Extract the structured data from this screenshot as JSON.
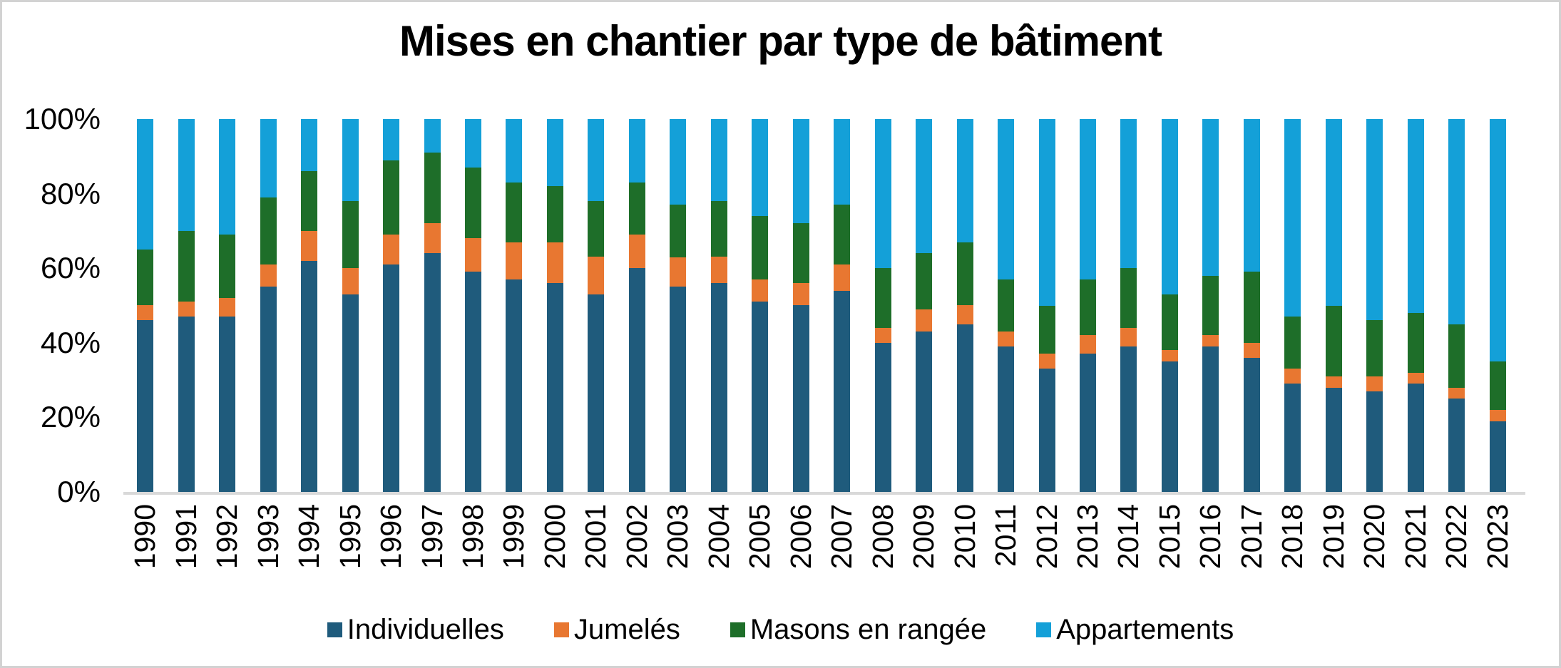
{
  "chart_data": {
    "type": "bar",
    "stacked": true,
    "stacking": "percent",
    "title": "Mises en chantier par type de bâtiment",
    "xlabel": "",
    "ylabel": "",
    "categories": [
      "1990",
      "1991",
      "1992",
      "1993",
      "1994",
      "1995",
      "1996",
      "1997",
      "1998",
      "1999",
      "2000",
      "2001",
      "2002",
      "2003",
      "2004",
      "2005",
      "2006",
      "2007",
      "2008",
      "2009",
      "2010",
      "2011",
      "2012",
      "2013",
      "2014",
      "2015",
      "2016",
      "2017",
      "2018",
      "2019",
      "2020",
      "2021",
      "2022",
      "2023"
    ],
    "series": [
      {
        "name": "Individuelles",
        "color": "#1F5B7C",
        "values": [
          46,
          47,
          47,
          55,
          62,
          53,
          61,
          64,
          59,
          57,
          56,
          53,
          60,
          55,
          56,
          51,
          50,
          54,
          40,
          43,
          45,
          39,
          33,
          37,
          39,
          35,
          39,
          36,
          29,
          28,
          27,
          29,
          25,
          19
        ]
      },
      {
        "name": "Jumelés",
        "color": "#E87731",
        "values": [
          4,
          4,
          5,
          6,
          8,
          7,
          8,
          8,
          9,
          10,
          11,
          10,
          9,
          8,
          7,
          6,
          6,
          7,
          4,
          6,
          5,
          4,
          4,
          5,
          5,
          3,
          3,
          4,
          4,
          3,
          4,
          3,
          3,
          3
        ]
      },
      {
        "name": "Masons en rangée",
        "color": "#1E6E29",
        "values": [
          15,
          19,
          17,
          18,
          16,
          18,
          20,
          19,
          19,
          16,
          15,
          15,
          14,
          14,
          15,
          17,
          16,
          16,
          16,
          15,
          17,
          14,
          13,
          15,
          16,
          15,
          16,
          19,
          14,
          19,
          15,
          16,
          17,
          13
        ]
      },
      {
        "name": "Appartements",
        "color": "#14A0D8",
        "values": [
          35,
          30,
          31,
          21,
          14,
          22,
          11,
          9,
          13,
          17,
          18,
          22,
          17,
          23,
          22,
          26,
          28,
          23,
          40,
          36,
          33,
          43,
          50,
          43,
          40,
          47,
          42,
          41,
          53,
          50,
          54,
          52,
          55,
          65
        ]
      }
    ],
    "ylim": [
      0,
      100
    ],
    "grid": false,
    "legend_position": "bottom"
  },
  "y_axis": {
    "tick_values": [
      100,
      80,
      60,
      40,
      20,
      0
    ],
    "tick_labels": [
      "100%",
      "80%",
      "60%",
      "40%",
      "20%",
      "0%"
    ]
  },
  "colors": {
    "axis_line": "#D9D9D9",
    "frame_border": "#D2D2D2",
    "text": "#000000",
    "background": "#FFFFFF"
  }
}
